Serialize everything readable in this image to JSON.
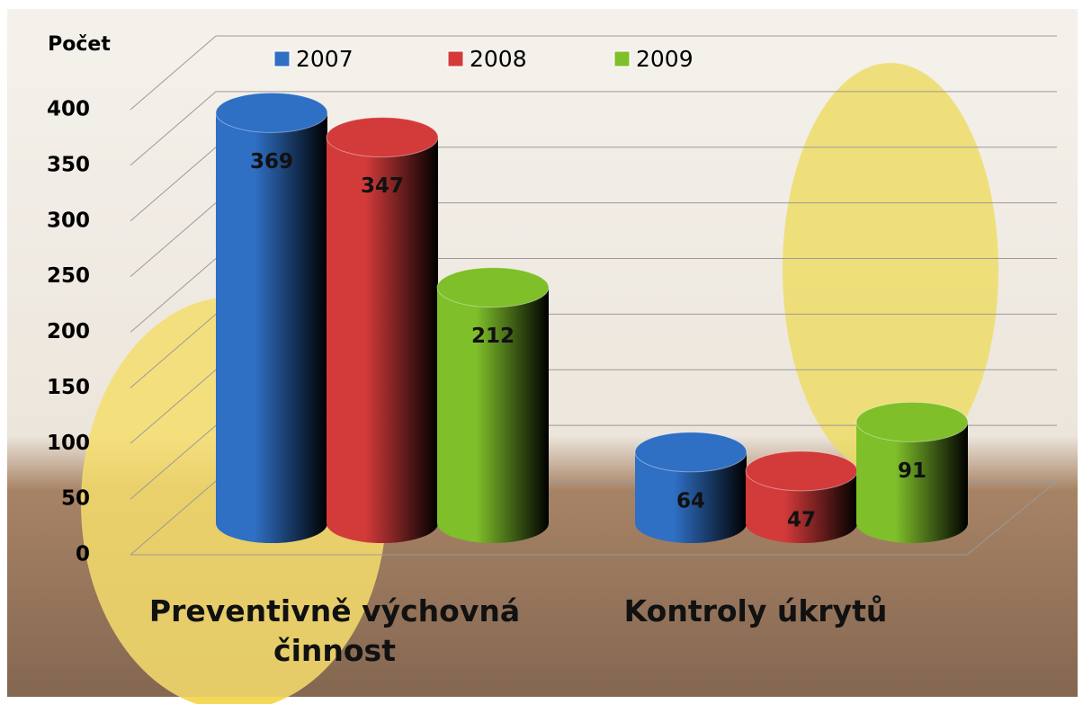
{
  "chart_data": {
    "type": "bar",
    "y_label": "Počet",
    "categories": [
      "Preventivně výchovná činnost",
      "Kontroly úkrytů"
    ],
    "series": [
      {
        "name": "2007",
        "color": "#2f6fc4",
        "values": [
          369,
          64
        ]
      },
      {
        "name": "2008",
        "color": "#d33a3a",
        "values": [
          347,
          47
        ]
      },
      {
        "name": "2009",
        "color": "#7fbf2a",
        "values": [
          212,
          91
        ]
      }
    ],
    "ylim": [
      0,
      400
    ],
    "yticks": [
      0,
      50,
      100,
      150,
      200,
      250,
      300,
      350,
      400
    ],
    "grid": true,
    "legend": "top"
  }
}
